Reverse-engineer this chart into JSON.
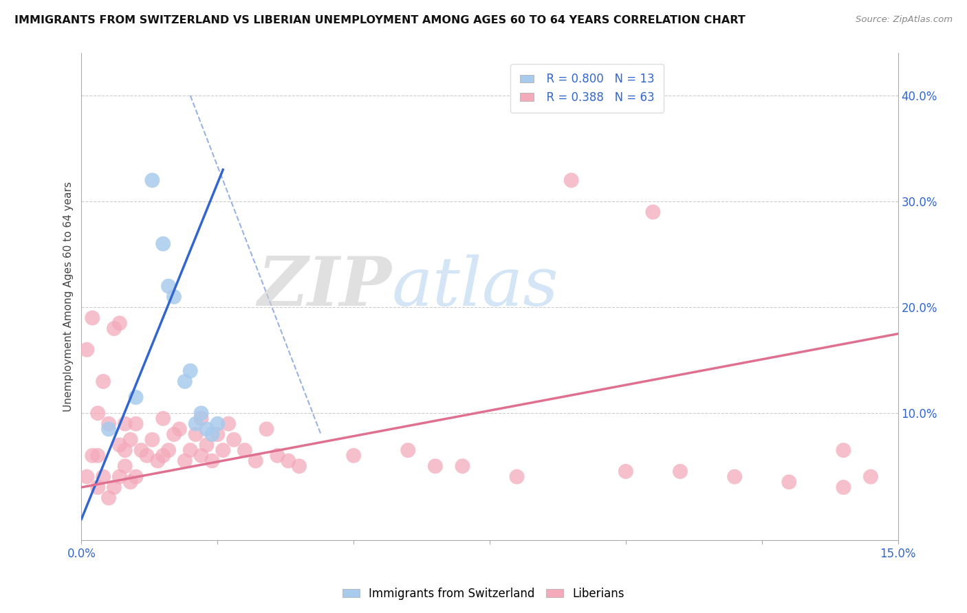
{
  "title": "IMMIGRANTS FROM SWITZERLAND VS LIBERIAN UNEMPLOYMENT AMONG AGES 60 TO 64 YEARS CORRELATION CHART",
  "source": "Source: ZipAtlas.com",
  "ylabel": "Unemployment Among Ages 60 to 64 years",
  "xlim": [
    0.0,
    0.15
  ],
  "ylim": [
    -0.02,
    0.44
  ],
  "xticks": [
    0.0,
    0.025,
    0.05,
    0.075,
    0.1,
    0.125,
    0.15
  ],
  "xticklabels": [
    "0.0%",
    "",
    "",
    "",
    "",
    "",
    "15.0%"
  ],
  "yticks_right": [
    0.0,
    0.1,
    0.2,
    0.3,
    0.4
  ],
  "yticklabels_right": [
    "",
    "10.0%",
    "20.0%",
    "30.0%",
    "40.0%"
  ],
  "legend_r1": "R = 0.800",
  "legend_n1": "N = 13",
  "legend_r2": "R = 0.388",
  "legend_n2": "N = 63",
  "watermark_zip": "ZIP",
  "watermark_atlas": "atlas",
  "color_swiss": "#A8CAED",
  "color_liberian": "#F4AABB",
  "color_swiss_line": "#3366CC",
  "color_liberian_line": "#E07090",
  "swiss_points_x": [
    0.005,
    0.01,
    0.013,
    0.015,
    0.016,
    0.017,
    0.019,
    0.02,
    0.021,
    0.022,
    0.023,
    0.024,
    0.025
  ],
  "swiss_points_y": [
    0.085,
    0.115,
    0.32,
    0.26,
    0.22,
    0.21,
    0.13,
    0.14,
    0.09,
    0.1,
    0.085,
    0.08,
    0.09
  ],
  "liberian_points_x": [
    0.001,
    0.001,
    0.002,
    0.002,
    0.003,
    0.003,
    0.003,
    0.004,
    0.004,
    0.005,
    0.005,
    0.006,
    0.006,
    0.007,
    0.007,
    0.007,
    0.008,
    0.008,
    0.008,
    0.009,
    0.009,
    0.01,
    0.01,
    0.011,
    0.012,
    0.013,
    0.014,
    0.015,
    0.015,
    0.016,
    0.017,
    0.018,
    0.019,
    0.02,
    0.021,
    0.022,
    0.022,
    0.023,
    0.024,
    0.025,
    0.026,
    0.027,
    0.028,
    0.03,
    0.032,
    0.034,
    0.036,
    0.038,
    0.04,
    0.05,
    0.06,
    0.065,
    0.07,
    0.08,
    0.09,
    0.1,
    0.105,
    0.11,
    0.12,
    0.13,
    0.14,
    0.14,
    0.145
  ],
  "liberian_points_y": [
    0.04,
    0.16,
    0.06,
    0.19,
    0.03,
    0.06,
    0.1,
    0.04,
    0.13,
    0.02,
    0.09,
    0.03,
    0.18,
    0.04,
    0.07,
    0.185,
    0.05,
    0.065,
    0.09,
    0.035,
    0.075,
    0.04,
    0.09,
    0.065,
    0.06,
    0.075,
    0.055,
    0.06,
    0.095,
    0.065,
    0.08,
    0.085,
    0.055,
    0.065,
    0.08,
    0.06,
    0.095,
    0.07,
    0.055,
    0.08,
    0.065,
    0.09,
    0.075,
    0.065,
    0.055,
    0.085,
    0.06,
    0.055,
    0.05,
    0.06,
    0.065,
    0.05,
    0.05,
    0.04,
    0.32,
    0.045,
    0.29,
    0.045,
    0.04,
    0.035,
    0.03,
    0.065,
    0.04
  ],
  "swiss_line_x": [
    0.0,
    0.026
  ],
  "swiss_line_y": [
    0.0,
    0.33
  ],
  "liberian_line_x": [
    0.0,
    0.15
  ],
  "liberian_line_y": [
    0.03,
    0.175
  ],
  "dashed_line_x": [
    0.02,
    0.044
  ],
  "dashed_line_y": [
    0.4,
    0.08
  ]
}
